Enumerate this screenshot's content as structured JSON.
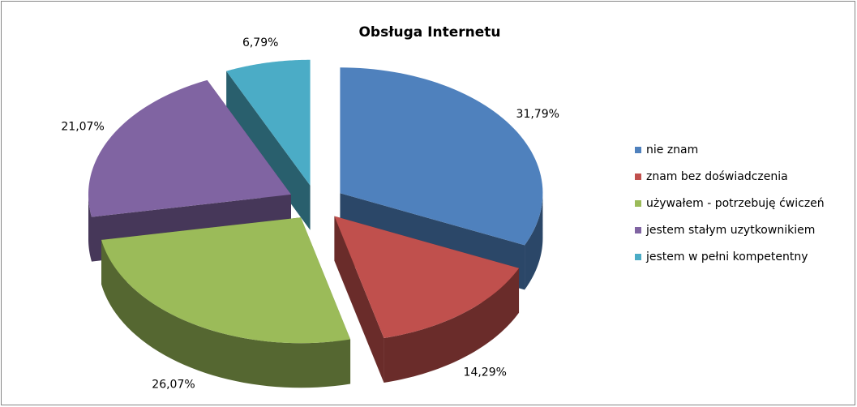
{
  "chart_data": {
    "type": "pie3d",
    "title": "Obsługa Internetu",
    "categories": [
      "nie znam",
      "znam bez doświadczenia",
      "używałem - potrzebuję ćwiczeń",
      "jestem stałym uzytkownikiem",
      "jestem w pełni kompetentny"
    ],
    "values": [
      31.79,
      14.29,
      26.07,
      21.07,
      6.79
    ],
    "value_labels": [
      "31,79%",
      "14,29%",
      "26,07%",
      "21,07%",
      "6,79%"
    ],
    "colors": [
      "#4f81bd",
      "#c0504d",
      "#9bbb59",
      "#8064a2",
      "#4bacc6"
    ],
    "legend": "right"
  }
}
